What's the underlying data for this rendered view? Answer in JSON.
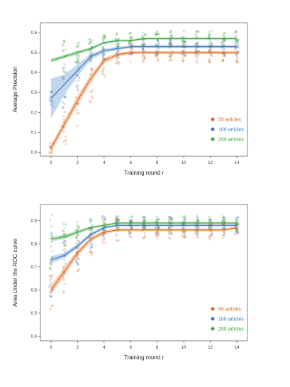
{
  "chart_data": [
    {
      "type": "line",
      "xlabel": "Training round r",
      "ylabel": "Average Precision",
      "xlim": [
        -0.8,
        14.8
      ],
      "ylim": [
        -0.02,
        0.65
      ],
      "xticks": [
        0,
        2,
        4,
        6,
        8,
        10,
        12,
        14
      ],
      "yticks": [
        0.0,
        0.1,
        0.2,
        0.3,
        0.4,
        0.5,
        0.6
      ],
      "ytick_labels": [
        "0.0",
        "0.1",
        "0.2",
        "0.3",
        "0.4",
        "0.5",
        "0.6"
      ],
      "legend_position": "lower-right",
      "grid": false,
      "x": [
        0,
        1,
        2,
        3,
        4,
        5,
        6,
        7,
        8,
        9,
        10,
        11,
        12,
        13,
        14
      ],
      "series": [
        {
          "name": "50 articles",
          "color": "#e0661a",
          "values": [
            0.02,
            0.14,
            0.26,
            0.37,
            0.46,
            0.49,
            0.5,
            0.5,
            0.5,
            0.5,
            0.5,
            0.5,
            0.5,
            0.5,
            0.5
          ],
          "band": [
            0.02,
            0.02,
            0.025,
            0.02,
            0.015,
            0.01,
            0.008,
            0.008,
            0.008,
            0.008,
            0.008,
            0.008,
            0.008,
            0.008,
            0.008
          ],
          "scatter_spread": [
            0.03,
            0.12,
            0.14,
            0.12,
            0.08,
            0.05,
            0.05,
            0.05,
            0.05,
            0.05,
            0.05,
            0.05,
            0.05,
            0.05,
            0.05
          ]
        },
        {
          "name": "100 articles",
          "color": "#3b78c2",
          "values": [
            0.27,
            0.34,
            0.41,
            0.48,
            0.51,
            0.52,
            0.53,
            0.53,
            0.53,
            0.53,
            0.53,
            0.53,
            0.53,
            0.53,
            0.53
          ],
          "band": [
            0.1,
            0.05,
            0.03,
            0.015,
            0.01,
            0.008,
            0.008,
            0.008,
            0.008,
            0.008,
            0.008,
            0.008,
            0.008,
            0.008,
            0.008
          ],
          "scatter_spread": [
            0.04,
            0.12,
            0.1,
            0.07,
            0.05,
            0.05,
            0.05,
            0.05,
            0.05,
            0.05,
            0.05,
            0.05,
            0.05,
            0.05,
            0.05
          ]
        },
        {
          "name": "200 articles",
          "color": "#3aa637",
          "values": [
            0.46,
            0.48,
            0.5,
            0.52,
            0.55,
            0.56,
            0.56,
            0.57,
            0.57,
            0.57,
            0.57,
            0.57,
            0.57,
            0.57,
            0.57
          ],
          "band": [
            0.01,
            0.01,
            0.01,
            0.008,
            0.006,
            0.006,
            0.006,
            0.006,
            0.006,
            0.006,
            0.006,
            0.006,
            0.006,
            0.006,
            0.006
          ],
          "scatter_spread": [
            0.0,
            0.08,
            0.06,
            0.05,
            0.04,
            0.04,
            0.04,
            0.04,
            0.04,
            0.04,
            0.04,
            0.04,
            0.04,
            0.04,
            0.04
          ]
        }
      ]
    },
    {
      "type": "line",
      "xlabel": "Training round r",
      "ylabel": "Area Under the ROC curve",
      "xlim": [
        -0.8,
        14.8
      ],
      "ylim": [
        0.38,
        0.97
      ],
      "xticks": [
        0,
        2,
        4,
        6,
        8,
        10,
        12,
        14
      ],
      "yticks": [
        0.4,
        0.5,
        0.6,
        0.7,
        0.8,
        0.9
      ],
      "ytick_labels": [
        "0.4",
        "0.5",
        "0.6",
        "0.7",
        "0.8",
        "0.9"
      ],
      "legend_position": "lower-right",
      "grid": false,
      "x": [
        0,
        1,
        2,
        3,
        4,
        5,
        6,
        7,
        8,
        9,
        10,
        11,
        12,
        13,
        14
      ],
      "series": [
        {
          "name": "50 articles",
          "color": "#e0661a",
          "values": [
            0.6,
            0.68,
            0.76,
            0.82,
            0.85,
            0.86,
            0.86,
            0.86,
            0.86,
            0.86,
            0.86,
            0.86,
            0.86,
            0.86,
            0.87
          ],
          "band": [
            0.02,
            0.02,
            0.015,
            0.01,
            0.008,
            0.006,
            0.006,
            0.006,
            0.006,
            0.006,
            0.006,
            0.006,
            0.006,
            0.006,
            0.006
          ],
          "scatter_spread": [
            0.1,
            0.12,
            0.1,
            0.08,
            0.06,
            0.05,
            0.04,
            0.04,
            0.04,
            0.04,
            0.04,
            0.04,
            0.04,
            0.04,
            0.04
          ]
        },
        {
          "name": "100 articles",
          "color": "#3b78c2",
          "values": [
            0.73,
            0.75,
            0.79,
            0.84,
            0.87,
            0.88,
            0.88,
            0.88,
            0.88,
            0.88,
            0.88,
            0.88,
            0.88,
            0.88,
            0.88
          ],
          "band": [
            0.015,
            0.012,
            0.01,
            0.008,
            0.006,
            0.005,
            0.005,
            0.005,
            0.005,
            0.005,
            0.005,
            0.005,
            0.005,
            0.005,
            0.005
          ],
          "scatter_spread": [
            0.16,
            0.1,
            0.08,
            0.06,
            0.05,
            0.04,
            0.04,
            0.04,
            0.04,
            0.04,
            0.04,
            0.04,
            0.04,
            0.04,
            0.04
          ]
        },
        {
          "name": "200 articles",
          "color": "#3aa637",
          "values": [
            0.82,
            0.83,
            0.85,
            0.87,
            0.88,
            0.89,
            0.89,
            0.89,
            0.89,
            0.89,
            0.89,
            0.89,
            0.89,
            0.89,
            0.89
          ],
          "band": [
            0.01,
            0.01,
            0.008,
            0.006,
            0.005,
            0.004,
            0.004,
            0.004,
            0.004,
            0.004,
            0.004,
            0.004,
            0.004,
            0.004,
            0.004
          ],
          "scatter_spread": [
            0.15,
            0.06,
            0.05,
            0.04,
            0.03,
            0.03,
            0.03,
            0.03,
            0.03,
            0.03,
            0.03,
            0.03,
            0.03,
            0.03,
            0.03
          ]
        }
      ]
    }
  ]
}
